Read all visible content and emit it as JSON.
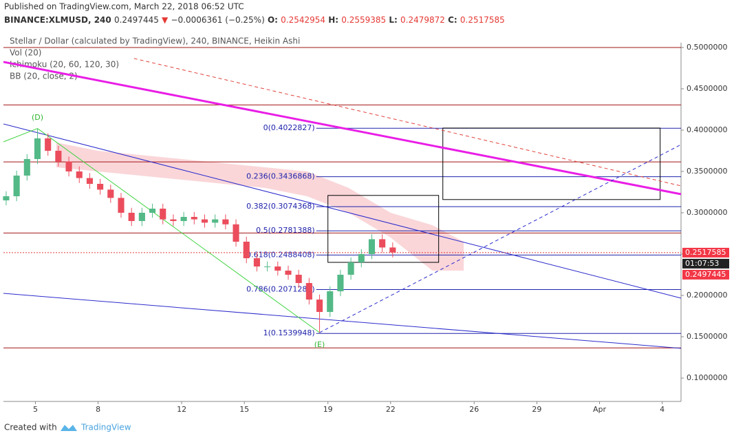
{
  "header": {
    "published": "Published on TradingView.com, March 22, 2018 06:52 UTC",
    "symbol": "BINANCE:XLMUSD, 240",
    "last": "0.2497445",
    "arrow": "▼",
    "change": "−0.0006361 (−0.25%)",
    "ohlc": [
      {
        "key": "O:",
        "value": "0.2542954"
      },
      {
        "key": "H:",
        "value": "0.2559385"
      },
      {
        "key": "L:",
        "value": "0.2479872"
      },
      {
        "key": "C:",
        "value": "0.2517585"
      }
    ]
  },
  "footer": {
    "created": "Created with",
    "brand": "TradingView"
  },
  "chart_data": {
    "type": "candlestick",
    "title": "Stellar / Dollar (calculated by TradingView), 240, BINANCE, Heikin Ashi",
    "indicators": [
      "Vol (20)",
      "Ichimoku (20, 60, 120, 30)",
      "BB (20, close, 2)"
    ],
    "up_color": "#53b987",
    "down_color": "#eb4d5c",
    "x": [
      3.6,
      4.1,
      4.6,
      5.1,
      5.6,
      6.1,
      6.6,
      7.1,
      7.6,
      8.1,
      8.6,
      9.1,
      9.6,
      10.1,
      10.6,
      11.1,
      11.6,
      12.1,
      12.6,
      13.1,
      13.6,
      14.1,
      14.6,
      15.1,
      15.6,
      16.1,
      16.6,
      17.1,
      17.6,
      18.1,
      18.6,
      19.1,
      19.6,
      20.1,
      20.6,
      21.1,
      21.6,
      22.1
    ],
    "open": [
      0.315,
      0.32,
      0.345,
      0.365,
      0.39,
      0.375,
      0.362,
      0.35,
      0.342,
      0.335,
      0.328,
      0.318,
      0.3,
      0.29,
      0.3,
      0.305,
      0.292,
      0.29,
      0.295,
      0.292,
      0.288,
      0.292,
      0.286,
      0.265,
      0.245,
      0.235,
      0.235,
      0.23,
      0.225,
      0.215,
      0.195,
      0.18,
      0.205,
      0.225,
      0.24,
      0.25,
      0.268,
      0.258
    ],
    "high": [
      0.326,
      0.351,
      0.371,
      0.402,
      0.396,
      0.381,
      0.368,
      0.356,
      0.348,
      0.341,
      0.334,
      0.324,
      0.306,
      0.306,
      0.311,
      0.311,
      0.298,
      0.301,
      0.301,
      0.298,
      0.298,
      0.298,
      0.292,
      0.271,
      0.251,
      0.241,
      0.241,
      0.236,
      0.231,
      0.221,
      0.201,
      0.211,
      0.231,
      0.246,
      0.256,
      0.274,
      0.274,
      0.264
    ],
    "low": [
      0.309,
      0.314,
      0.339,
      0.359,
      0.369,
      0.356,
      0.344,
      0.336,
      0.329,
      0.322,
      0.312,
      0.294,
      0.284,
      0.284,
      0.294,
      0.286,
      0.284,
      0.284,
      0.286,
      0.282,
      0.282,
      0.28,
      0.259,
      0.239,
      0.229,
      0.229,
      0.224,
      0.219,
      0.209,
      0.189,
      0.155,
      0.174,
      0.199,
      0.219,
      0.234,
      0.244,
      0.252,
      0.246
    ],
    "close": [
      0.32,
      0.345,
      0.365,
      0.39,
      0.375,
      0.362,
      0.35,
      0.342,
      0.335,
      0.328,
      0.318,
      0.3,
      0.29,
      0.3,
      0.305,
      0.292,
      0.29,
      0.295,
      0.292,
      0.288,
      0.292,
      0.286,
      0.265,
      0.245,
      0.235,
      0.235,
      0.23,
      0.225,
      0.215,
      0.195,
      0.18,
      0.205,
      0.225,
      0.24,
      0.25,
      0.268,
      0.258,
      0.252
    ],
    "xlim": [
      3.47,
      35.9
    ],
    "xticks": [
      5,
      8,
      12,
      15,
      19,
      22,
      26,
      29,
      {
        "value": 32,
        "label": "Apr"
      },
      {
        "value": 35,
        "label": "4"
      }
    ],
    "ylim": [
      0.0717,
      0.5058
    ],
    "yticks": [
      {
        "value": 0.1,
        "label": "0.1000000"
      },
      {
        "value": 0.15,
        "label": "0.1500000"
      },
      {
        "value": 0.2,
        "label": "0.2000000"
      },
      {
        "value": 0.25,
        "label": "0.2500000"
      },
      {
        "value": 0.3,
        "label": "0.3000000"
      },
      {
        "value": 0.35,
        "label": "0.3500000"
      },
      {
        "value": 0.4,
        "label": "0.4000000"
      },
      {
        "value": 0.45,
        "label": "0.4500000"
      },
      {
        "value": 0.5,
        "label": "0.5000000"
      }
    ],
    "fib_start": 18.44,
    "fib_color": "#1e22aa",
    "fib_levels": [
      {
        "label": "0(0.4022827)",
        "value": 0.4022827
      },
      {
        "label": "0.236(0.3436868)",
        "value": 0.3436868
      },
      {
        "label": "0.382(0.3074368)",
        "value": 0.3074368
      },
      {
        "label": "0.5(0.2781388)",
        "value": 0.2781388
      },
      {
        "label": "0.618(0.2488408)",
        "value": 0.2488408
      },
      {
        "label": "0.786(0.2071284)",
        "value": 0.2071284
      },
      {
        "label": "1(0.1539948)",
        "value": 0.1539948
      }
    ],
    "horizontal_lines": {
      "color": "#a31515",
      "values": [
        0.5,
        0.4305,
        0.3615,
        0.2755,
        0.1365
      ]
    },
    "last_price": 0.2517585,
    "price_labels": [
      {
        "text": "0.2517585",
        "color": "#f23645"
      },
      {
        "text": "01:07:53",
        "color": "#222222"
      },
      {
        "text": "0.2497445",
        "color": "#f23645"
      }
    ],
    "trendlines": [
      {
        "color": "#e91ee6",
        "width": 3,
        "dash": false,
        "points": [
          [
            3.47,
            0.4825
          ],
          [
            35.9,
            0.3225
          ]
        ]
      },
      {
        "color": "#e0413a",
        "width": 1,
        "dash": true,
        "points": [
          [
            9.72,
            0.4867
          ],
          [
            35.9,
            0.3325
          ]
        ]
      },
      {
        "color": "#2b2bcc",
        "width": 1,
        "dash": false,
        "points": [
          [
            3.47,
            0.4075
          ],
          [
            35.9,
            0.1967
          ]
        ]
      },
      {
        "color": "#2b2bcc",
        "width": 1,
        "dash": false,
        "points": [
          [
            3.47,
            0.2025
          ],
          [
            35.9,
            0.136
          ]
        ]
      },
      {
        "color": "#2b2bcc",
        "width": 1,
        "dash": true,
        "points": [
          [
            18.6,
            0.155
          ],
          [
            35.9,
            0.3825
          ]
        ]
      },
      {
        "color": "#3fd43f",
        "width": 1,
        "dash": false,
        "points": [
          [
            3.47,
            0.3858
          ],
          [
            5.1,
            0.402
          ]
        ]
      },
      {
        "color": "#3fd43f",
        "width": 1,
        "dash": false,
        "points": [
          [
            5.1,
            0.402
          ],
          [
            18.6,
            0.155
          ]
        ]
      }
    ],
    "boxes": [
      {
        "x": [
          19.0,
          24.3
        ],
        "y": [
          0.24,
          0.321
        ]
      },
      {
        "x": [
          24.5,
          34.9
        ],
        "y": [
          0.316,
          0.4025
        ]
      }
    ],
    "points": [
      {
        "label": "(D)",
        "x": 5.1,
        "y": 0.415
      },
      {
        "label": "(E)",
        "x": 18.6,
        "y": 0.14
      }
    ],
    "cloud": {
      "color": "#f8c8cc",
      "x": [
        6,
        8,
        10,
        12,
        14,
        16,
        18,
        20,
        22,
        24,
        25.5
      ],
      "upper": [
        0.385,
        0.375,
        0.37,
        0.365,
        0.36,
        0.355,
        0.35,
        0.33,
        0.3,
        0.285,
        0.265
      ],
      "lower": [
        0.355,
        0.35,
        0.345,
        0.34,
        0.335,
        0.33,
        0.32,
        0.3,
        0.27,
        0.23,
        0.23
      ]
    }
  }
}
